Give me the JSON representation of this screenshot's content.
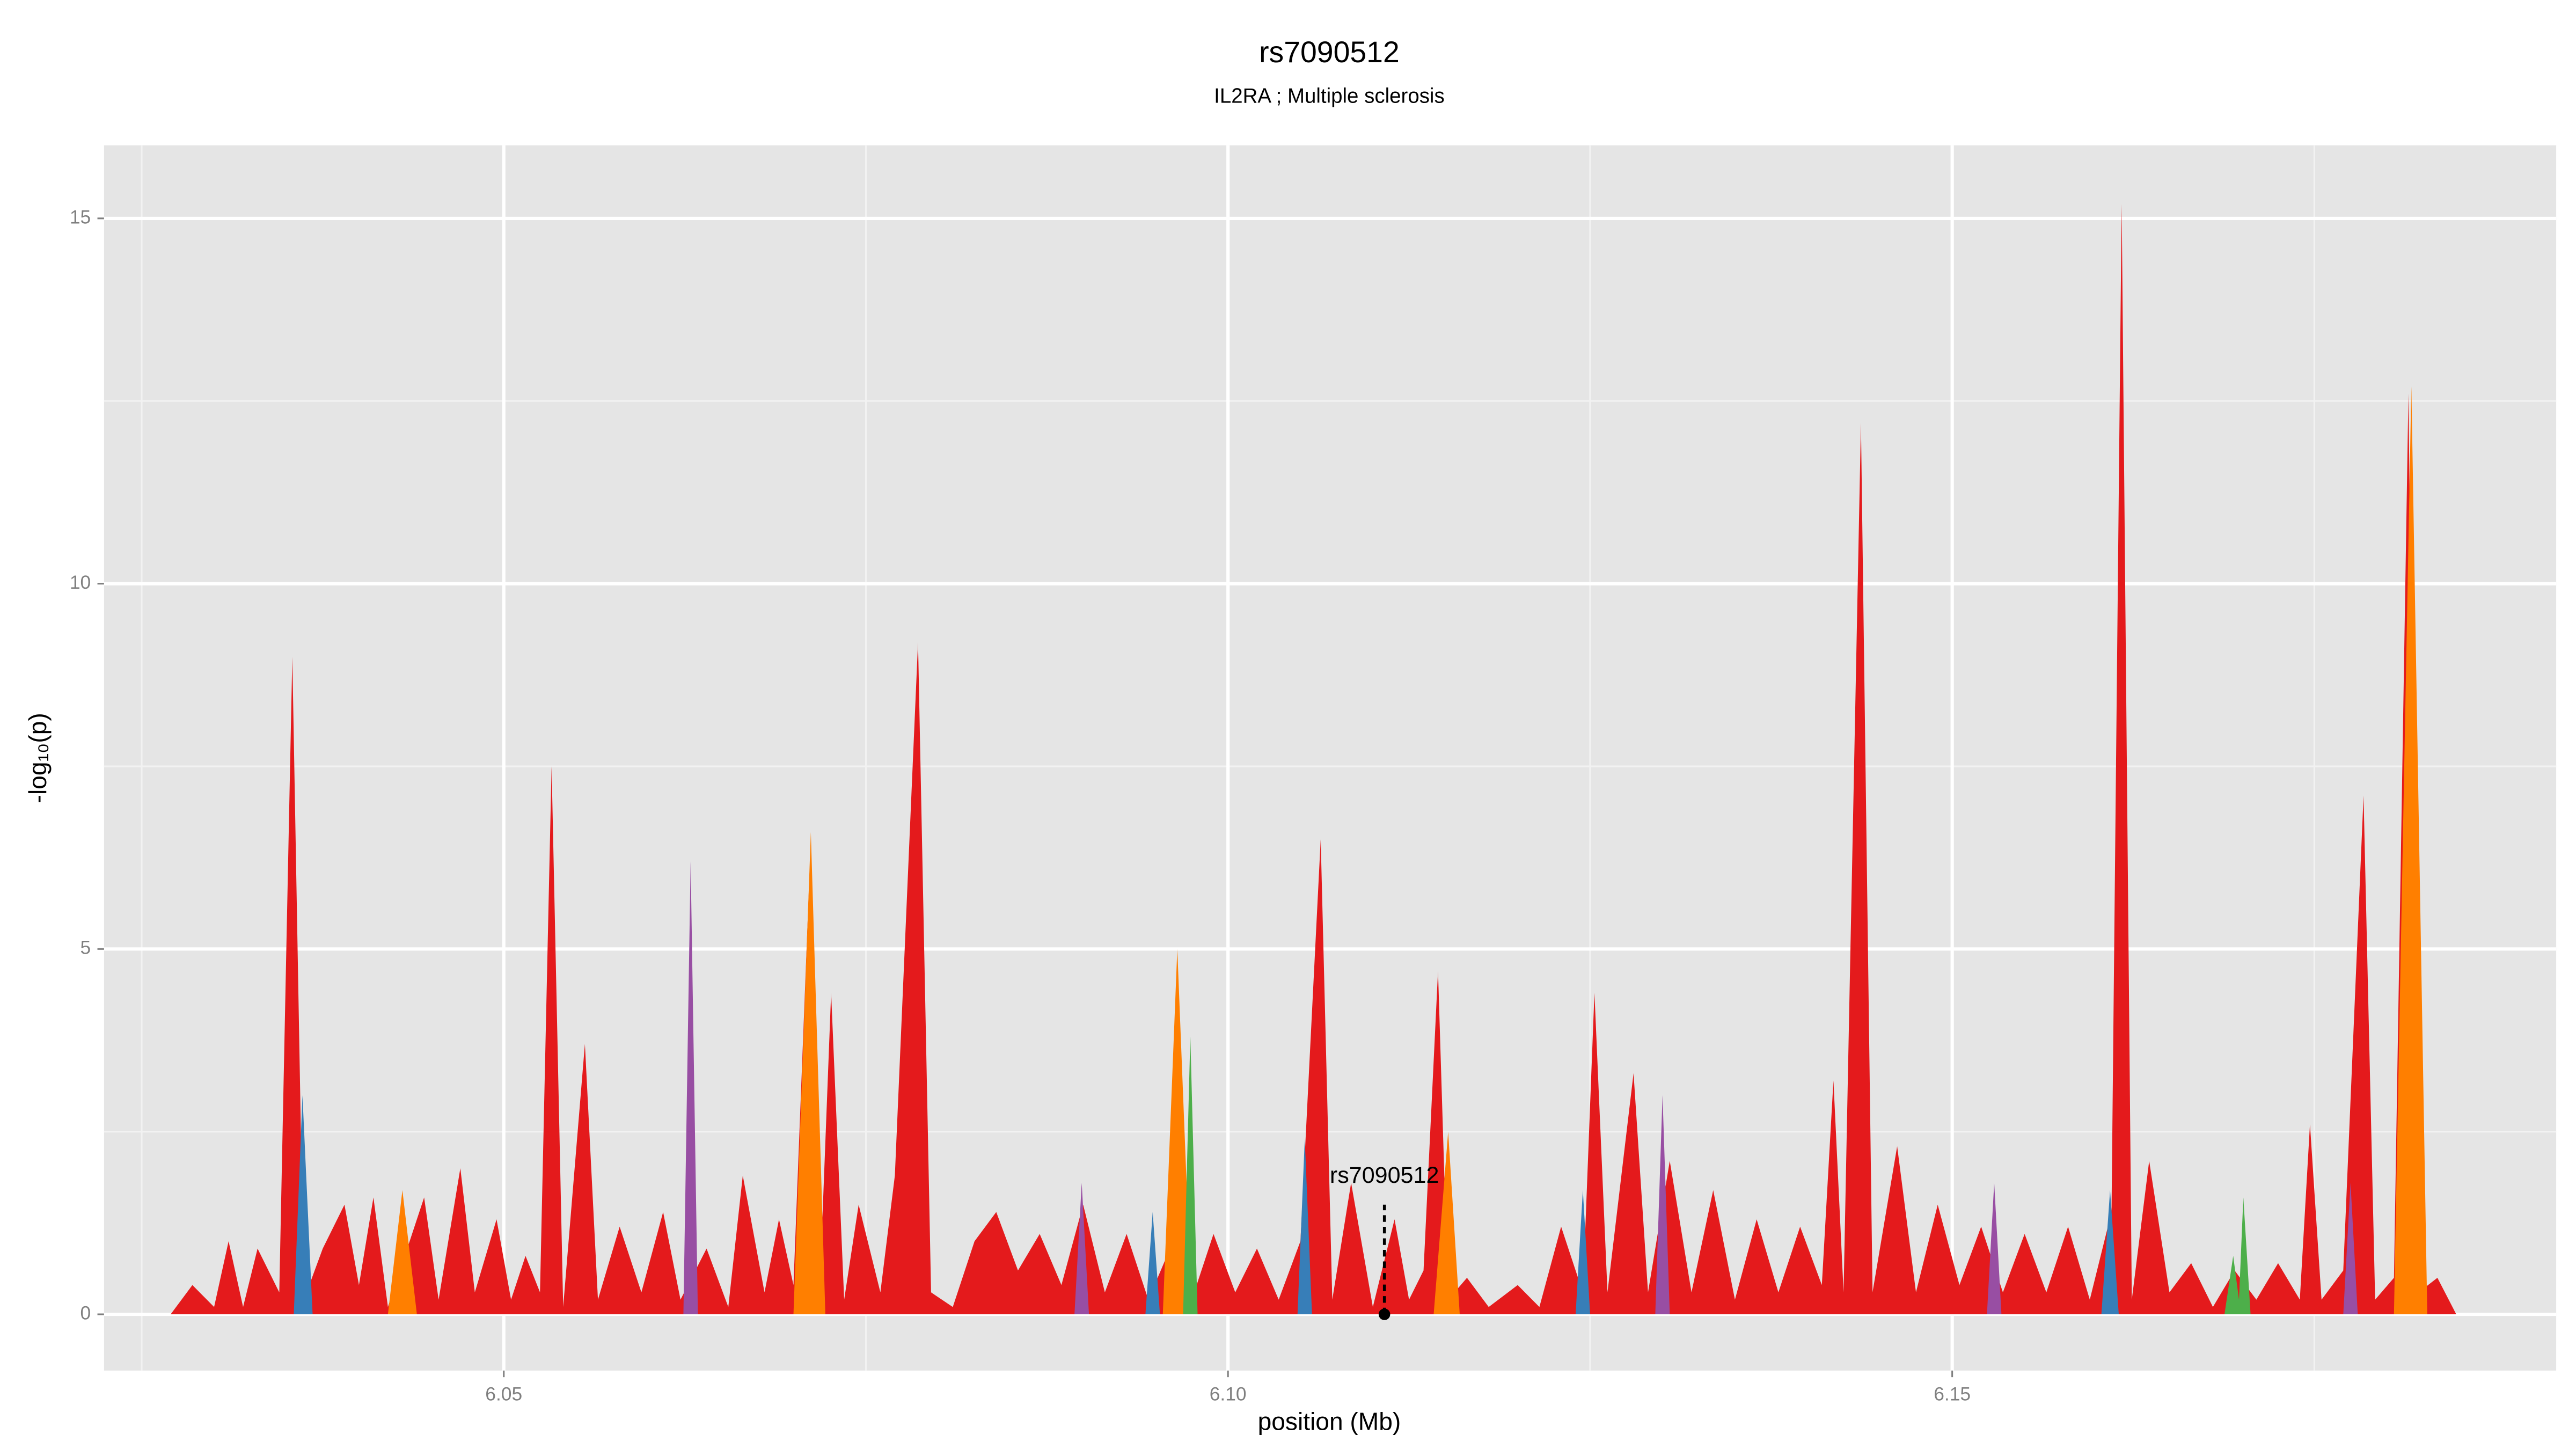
{
  "chart_data": {
    "type": "area",
    "title": "rs7090512",
    "subtitle": "IL2RA ; Multiple sclerosis",
    "xlabel": "position (Mb)",
    "ylabel": "-log₁₀(p)",
    "xlim": [
      6.0224,
      6.1917
    ],
    "ylim": [
      -0.77,
      16
    ],
    "xticks": [
      6.05,
      {
        "value": 6.1,
        "label": "6.10"
      },
      6.15
    ],
    "yticks": [
      0,
      5,
      10,
      15
    ],
    "x_minor_gridlines": [
      6.025,
      6.075,
      6.125,
      6.175
    ],
    "y_minor_gridlines": [
      2.5,
      7.5,
      12.5
    ],
    "grid": true,
    "series": [
      {
        "color": "#e41a1c",
        "x": [
          6.027,
          6.0285,
          6.03,
          6.031,
          6.032,
          6.033,
          6.0345,
          6.0354,
          6.0362,
          6.0375,
          6.039,
          6.04,
          6.041,
          6.042,
          6.043,
          6.0445,
          6.0455,
          6.047,
          6.048,
          6.0495,
          6.0505,
          6.0515,
          6.0525,
          6.0533,
          6.0541,
          6.0556,
          6.0565,
          6.058,
          6.0595,
          6.061,
          6.0622,
          6.064,
          6.0655,
          6.0665,
          6.068,
          6.069,
          6.07,
          6.0712,
          6.0718,
          6.0726,
          6.0735,
          6.0745,
          6.076,
          6.077,
          6.0786,
          6.0795,
          6.081,
          6.0825,
          6.084,
          6.0855,
          6.087,
          6.0885,
          6.09,
          6.0915,
          6.093,
          6.0945,
          6.096,
          6.0975,
          6.099,
          6.1005,
          6.102,
          6.1035,
          6.105,
          6.1064,
          6.1072,
          6.1085,
          6.11,
          6.1115,
          6.1125,
          6.1135,
          6.1145,
          6.1152,
          6.1165,
          6.118,
          6.12,
          6.1215,
          6.123,
          6.1245,
          6.1253,
          6.1262,
          6.128,
          6.129,
          6.1305,
          6.132,
          6.1335,
          6.135,
          6.1365,
          6.138,
          6.1395,
          6.141,
          6.1418,
          6.1425,
          6.1437,
          6.1445,
          6.1462,
          6.1475,
          6.149,
          6.1505,
          6.152,
          6.1535,
          6.155,
          6.1565,
          6.158,
          6.1595,
          6.161,
          6.1617,
          6.1624,
          6.1636,
          6.165,
          6.1665,
          6.168,
          6.1695,
          6.171,
          6.1725,
          6.174,
          6.1747,
          6.1755,
          6.177,
          6.1784,
          6.1792,
          6.1805,
          6.1815,
          6.1822,
          6.1835,
          6.1848
        ],
        "values": [
          0,
          0.4,
          0.1,
          1.0,
          0.1,
          0.9,
          0.3,
          9.0,
          0.2,
          0.9,
          1.5,
          0.4,
          1.6,
          0.1,
          0.7,
          1.6,
          0.2,
          2.0,
          0.3,
          1.3,
          0.2,
          0.8,
          0.3,
          7.5,
          0.1,
          3.7,
          0.2,
          1.2,
          0.3,
          1.4,
          0.2,
          0.9,
          0.1,
          1.9,
          0.3,
          1.3,
          0.4,
          6.5,
          0.3,
          4.4,
          0.2,
          1.5,
          0.3,
          1.9,
          9.2,
          0.3,
          0.1,
          1.0,
          1.4,
          0.6,
          1.1,
          0.4,
          1.5,
          0.3,
          1.1,
          0.2,
          0.9,
          0.2,
          1.1,
          0.3,
          0.9,
          0.2,
          1.0,
          6.5,
          0.2,
          1.8,
          0.1,
          1.3,
          0.2,
          0.6,
          4.7,
          0.2,
          0.5,
          0.1,
          0.4,
          0.1,
          1.2,
          0.3,
          4.4,
          0.3,
          3.3,
          0.3,
          2.1,
          0.3,
          1.7,
          0.2,
          1.3,
          0.3,
          1.2,
          0.4,
          3.2,
          0.3,
          12.2,
          0.3,
          2.3,
          0.3,
          1.5,
          0.4,
          1.2,
          0.3,
          1.1,
          0.3,
          1.2,
          0.2,
          1.4,
          15.2,
          0.2,
          2.1,
          0.3,
          0.7,
          0.1,
          0.6,
          0.2,
          0.7,
          0.2,
          2.6,
          0.2,
          0.6,
          7.1,
          0.2,
          0.5,
          12.6,
          0.3,
          0.5,
          0
        ]
      },
      {
        "color": "#377eb8",
        "x": [
          6.0355,
          6.0361,
          6.0368,
          6.0943,
          6.0948,
          6.0953,
          6.1048,
          6.1053,
          6.1058,
          6.124,
          6.1245,
          6.125,
          6.1603,
          6.1609,
          6.1615
        ],
        "values": [
          0,
          3.0,
          0,
          0,
          1.4,
          0,
          0,
          2.4,
          0,
          0,
          1.7,
          0,
          0,
          1.7,
          0
        ]
      },
      {
        "color": "#984ea3",
        "x": [
          6.0624,
          6.0629,
          6.0634,
          6.0894,
          6.0899,
          6.0904,
          6.1295,
          6.13,
          6.1305,
          6.1524,
          6.1529,
          6.1534,
          6.177,
          6.1775,
          6.178
        ],
        "values": [
          0,
          6.2,
          0,
          0,
          1.8,
          0,
          0,
          3.0,
          0,
          0,
          1.8,
          0,
          0,
          1.8,
          0
        ]
      },
      {
        "color": "#ff7f00",
        "x": [
          6.042,
          6.043,
          6.044,
          6.07,
          6.0712,
          6.0722,
          6.0955,
          6.0965,
          6.0975,
          6.1142,
          6.1152,
          6.116,
          6.1805,
          6.1817,
          6.1828
        ],
        "values": [
          0,
          1.7,
          0,
          0,
          6.6,
          0,
          0,
          5.0,
          0,
          0,
          2.5,
          0,
          0,
          12.7,
          0
        ]
      },
      {
        "color": "#4daf4a",
        "x": [
          6.0969,
          6.0974,
          6.0979,
          6.1688,
          6.1694,
          6.1698,
          6.1701,
          6.1706
        ],
        "values": [
          0,
          3.8,
          0,
          0,
          0.8,
          0.2,
          1.6,
          0
        ]
      }
    ],
    "annotation": {
      "label": "rs7090512",
      "x": 6.1108,
      "y": 0,
      "line_top": 1.5
    }
  }
}
